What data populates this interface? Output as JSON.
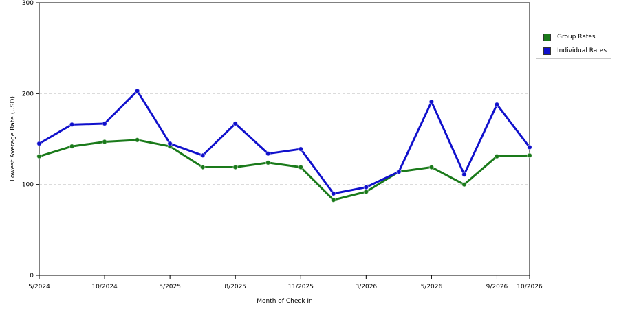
{
  "chart_data": {
    "type": "line",
    "xlabel": "Month of Check In",
    "ylabel": "Lowest Average Rate (USD)",
    "ylim": [
      0,
      300
    ],
    "yticks": [
      0,
      100,
      200,
      300
    ],
    "grid": true,
    "legend_position": "right",
    "x_tick_labels": [
      "5/2024",
      "10/2024",
      "5/2025",
      "8/2025",
      "11/2025",
      "3/2026",
      "5/2026",
      "9/2026",
      "10/2026"
    ],
    "x_tick_indices": [
      0,
      2,
      4,
      6,
      8,
      10,
      12,
      14,
      15
    ],
    "series": [
      {
        "name": "Group Rates",
        "color": "#1a7a1a",
        "values": [
          131,
          142,
          147,
          149,
          142,
          119,
          119,
          124,
          119,
          83,
          92,
          114,
          119,
          100,
          131,
          132
        ]
      },
      {
        "name": "Individual Rates",
        "color": "#1010cc",
        "values": [
          145,
          166,
          167,
          203,
          145,
          132,
          167,
          134,
          139,
          90,
          97,
          114,
          191,
          111,
          188,
          141
        ]
      }
    ]
  }
}
